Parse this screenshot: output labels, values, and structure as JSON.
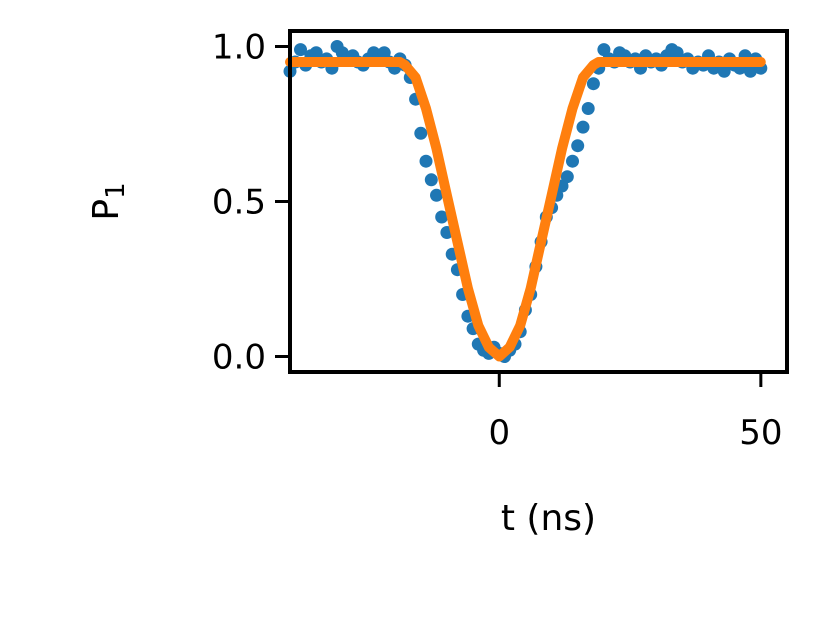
{
  "chart_data": {
    "type": "scatter",
    "title": "",
    "xlabel": "t (ns)",
    "ylabel_main": "P",
    "ylabel_sub": "1",
    "xlim": [
      -40,
      55
    ],
    "ylim": [
      -0.05,
      1.05
    ],
    "xticks": [
      {
        "value": 0,
        "label": "0"
      },
      {
        "value": 50,
        "label": "50"
      }
    ],
    "yticks": [
      {
        "value": 0.0,
        "label": "0.0"
      },
      {
        "value": 0.5,
        "label": "0.5"
      },
      {
        "value": 1.0,
        "label": "1.0"
      }
    ],
    "grid": false,
    "legend": "none",
    "colors": {
      "points": "#1f77b4",
      "fit": "#ff7f0e"
    },
    "series": [
      {
        "kind": "points",
        "x": [
          -40,
          -39,
          -38,
          -37,
          -36,
          -35,
          -34,
          -33,
          -32,
          -31,
          -30,
          -29,
          -28,
          -27,
          -26,
          -25,
          -24,
          -23,
          -22,
          -21,
          -20,
          -19,
          -18,
          -17,
          -16,
          -15,
          -14,
          -13,
          -12,
          -11,
          -10,
          -9,
          -8,
          -7,
          -6,
          -5,
          -4,
          -3,
          -2,
          -1,
          0,
          1,
          2,
          3,
          4,
          5,
          6,
          7,
          8,
          9,
          10,
          11,
          12,
          13,
          14,
          15,
          16,
          17,
          18,
          19,
          20,
          21,
          22,
          23,
          24,
          25,
          26,
          27,
          28,
          29,
          30,
          31,
          32,
          33,
          34,
          35,
          36,
          37,
          38,
          39,
          40,
          41,
          42,
          43,
          44,
          45,
          46,
          47,
          48,
          49,
          50
        ],
        "y": [
          0.92,
          0.95,
          0.99,
          0.94,
          0.97,
          0.98,
          0.95,
          0.96,
          0.93,
          1.0,
          0.98,
          0.96,
          0.97,
          0.95,
          0.94,
          0.96,
          0.98,
          0.97,
          0.98,
          0.95,
          0.93,
          0.96,
          0.94,
          0.9,
          0.83,
          0.72,
          0.63,
          0.57,
          0.52,
          0.45,
          0.4,
          0.33,
          0.28,
          0.2,
          0.13,
          0.09,
          0.04,
          0.02,
          0.01,
          0.03,
          0.01,
          0.0,
          0.02,
          0.04,
          0.08,
          0.15,
          0.2,
          0.29,
          0.37,
          0.45,
          0.48,
          0.52,
          0.55,
          0.58,
          0.63,
          0.68,
          0.74,
          0.8,
          0.88,
          0.93,
          0.99,
          0.96,
          0.95,
          0.98,
          0.97,
          0.95,
          0.96,
          0.93,
          0.97,
          0.95,
          0.96,
          0.94,
          0.97,
          0.99,
          0.98,
          0.95,
          0.96,
          0.93,
          0.95,
          0.94,
          0.97,
          0.93,
          0.95,
          0.92,
          0.96,
          0.94,
          0.93,
          0.97,
          0.92,
          0.96,
          0.93
        ]
      },
      {
        "kind": "line",
        "x": [
          -40,
          -35,
          -30,
          -25,
          -20,
          -19,
          -18,
          -16,
          -14,
          -12,
          -10,
          -8,
          -6,
          -4,
          -2,
          0,
          2,
          4,
          6,
          8,
          10,
          12,
          14,
          16,
          18,
          19,
          20,
          25,
          30,
          35,
          40,
          45,
          50
        ],
        "y": [
          0.95,
          0.95,
          0.95,
          0.95,
          0.95,
          0.95,
          0.94,
          0.9,
          0.8,
          0.67,
          0.52,
          0.37,
          0.22,
          0.1,
          0.03,
          0.0,
          0.03,
          0.1,
          0.22,
          0.37,
          0.52,
          0.67,
          0.8,
          0.9,
          0.94,
          0.95,
          0.95,
          0.95,
          0.95,
          0.95,
          0.95,
          0.95,
          0.95
        ]
      }
    ]
  }
}
